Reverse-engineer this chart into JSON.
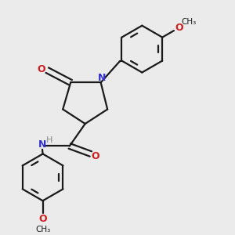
{
  "bg_color": "#ebebeb",
  "bond_color": "#1a1a1a",
  "N_color": "#3030cc",
  "O_color": "#cc2020",
  "H_color": "#888888",
  "line_width": 1.6,
  "figsize": [
    3.0,
    3.0
  ],
  "dpi": 100,
  "xlim": [
    0.0,
    1.0
  ],
  "ylim": [
    0.0,
    1.0
  ]
}
